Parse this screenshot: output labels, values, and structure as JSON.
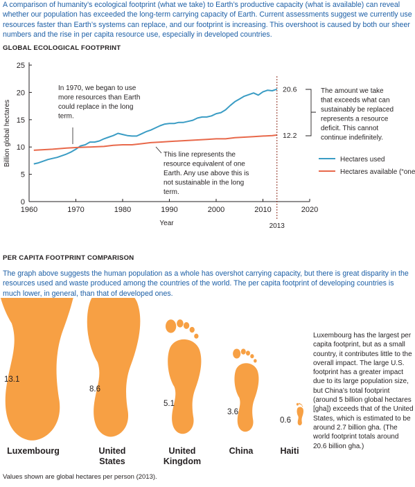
{
  "intro": "A comparison of humanity’s ecological footprint (what we take) to Earth’s productive capacity (what is available) can reveal whether our population has exceeded the long-term carrying capacity of Earth. Current assessments suggest we currently use resources faster than Earth’s systems can replace, and our footprint is increasing. This overshoot is caused by both our sheer numbers and the rise in per capita resource use, especially in developed countries.",
  "chart_data": {
    "type": "line",
    "title": "GLOBAL ECOLOGICAL FOOTPRINT",
    "xlabel": "Year",
    "ylabel": "Billion global hectares",
    "xlim": [
      1960,
      2020
    ],
    "ylim": [
      0,
      25
    ],
    "x_ticks": [
      "1960",
      "1970",
      "1980",
      "1990",
      "2000",
      "2010",
      "2020"
    ],
    "y_ticks": [
      "0",
      "5",
      "10",
      "15",
      "20",
      "25"
    ],
    "grid": false,
    "legend_position": "right",
    "colors": {
      "used": "#3a9cc4",
      "available": "#e8684a",
      "marker": "#8b2a1a"
    },
    "series": [
      {
        "name": "Hectares used",
        "points": [
          [
            1961,
            6.9
          ],
          [
            1962,
            7.1
          ],
          [
            1963,
            7.4
          ],
          [
            1964,
            7.7
          ],
          [
            1965,
            7.9
          ],
          [
            1966,
            8.1
          ],
          [
            1967,
            8.4
          ],
          [
            1968,
            8.7
          ],
          [
            1969,
            9.1
          ],
          [
            1970,
            9.6
          ],
          [
            1971,
            10.2
          ],
          [
            1972,
            10.4
          ],
          [
            1973,
            10.9
          ],
          [
            1974,
            10.9
          ],
          [
            1975,
            11.1
          ],
          [
            1976,
            11.5
          ],
          [
            1977,
            11.8
          ],
          [
            1978,
            12.1
          ],
          [
            1979,
            12.5
          ],
          [
            1980,
            12.3
          ],
          [
            1981,
            12.1
          ],
          [
            1982,
            12.0
          ],
          [
            1983,
            12.0
          ],
          [
            1984,
            12.4
          ],
          [
            1985,
            12.8
          ],
          [
            1986,
            13.1
          ],
          [
            1987,
            13.5
          ],
          [
            1988,
            13.9
          ],
          [
            1989,
            14.2
          ],
          [
            1990,
            14.3
          ],
          [
            1991,
            14.3
          ],
          [
            1992,
            14.5
          ],
          [
            1993,
            14.5
          ],
          [
            1994,
            14.7
          ],
          [
            1995,
            14.9
          ],
          [
            1996,
            15.3
          ],
          [
            1997,
            15.5
          ],
          [
            1998,
            15.5
          ],
          [
            1999,
            15.7
          ],
          [
            2000,
            16.1
          ],
          [
            2001,
            16.3
          ],
          [
            2002,
            16.8
          ],
          [
            2003,
            17.6
          ],
          [
            2004,
            18.3
          ],
          [
            2005,
            18.8
          ],
          [
            2006,
            19.3
          ],
          [
            2007,
            19.6
          ],
          [
            2008,
            19.9
          ],
          [
            2009,
            19.5
          ],
          [
            2010,
            20.1
          ],
          [
            2011,
            20.4
          ],
          [
            2012,
            20.3
          ],
          [
            2013,
            20.6
          ]
        ]
      },
      {
        "name": "Hectares available (“one Earth”)",
        "points": [
          [
            1961,
            9.4
          ],
          [
            1965,
            9.6
          ],
          [
            1968,
            9.8
          ],
          [
            1970,
            9.9
          ],
          [
            1973,
            10.0
          ],
          [
            1976,
            10.1
          ],
          [
            1978,
            10.3
          ],
          [
            1980,
            10.4
          ],
          [
            1982,
            10.4
          ],
          [
            1984,
            10.6
          ],
          [
            1986,
            10.8
          ],
          [
            1988,
            10.9
          ],
          [
            1990,
            11.0
          ],
          [
            1992,
            11.1
          ],
          [
            1994,
            11.2
          ],
          [
            1996,
            11.3
          ],
          [
            1998,
            11.4
          ],
          [
            2000,
            11.5
          ],
          [
            2002,
            11.5
          ],
          [
            2004,
            11.7
          ],
          [
            2006,
            11.8
          ],
          [
            2008,
            11.9
          ],
          [
            2010,
            12.0
          ],
          [
            2012,
            12.1
          ],
          [
            2013,
            12.2
          ]
        ]
      }
    ],
    "marker_year": "2013",
    "annotations": {
      "used_end_value": "20.6",
      "available_end_value": "12.2",
      "note_1970": [
        "In 1970, we began to use",
        "more resources than Earth",
        "could replace in the long",
        "term."
      ],
      "note_line": [
        "This line represents the",
        "resource equivalent of one",
        "Earth. Any use above this is",
        "not sustainable in the long",
        "term."
      ],
      "note_deficit": [
        "The amount we take",
        "that exceeds what can",
        "sustainably be replaced",
        "represents a resource",
        "deficit. This cannot",
        "continue indefinitely."
      ]
    }
  },
  "per_capita": {
    "title": "PER CAPITA FOOTPRINT COMPARISON",
    "text": "The graph above suggests the human population as a whole has overshot carrying capacity, but there is great disparity in the resources used and waste produced among the countries of the world. The per capita footprint of developing countries is much lower, in general, than that of developed ones.",
    "foot_color": "#f7a044",
    "countries": [
      {
        "name": "Luxembourg",
        "value": 13.1
      },
      {
        "name": "United States",
        "value": 8.6
      },
      {
        "name": "United Kingdom",
        "value": 5.1
      },
      {
        "name": "China",
        "value": 3.6
      },
      {
        "name": "Haiti",
        "value": 0.6
      }
    ],
    "note": "Luxembourg has the largest per capita footprint, but as a small country, it contributes little to the overall impact. The large U.S. footprint has a greater impact due to its large population size, but China’s total footprint (around 5 billion global hectares [gha]) exceeds that of the United States, which is estimated to be around 2.7 billion gha. (The world footprint totals around 20.6 billion gha.)",
    "caption": "Values shown are global hectares per person (2013)."
  }
}
